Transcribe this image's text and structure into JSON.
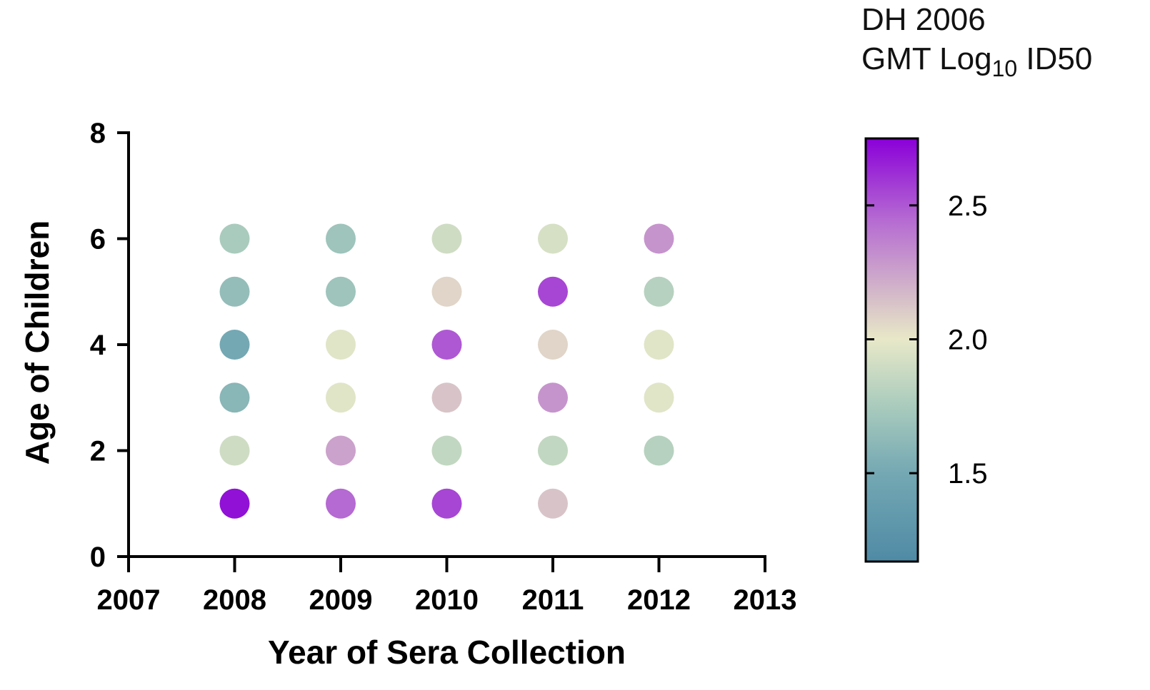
{
  "chart_data": {
    "type": "scatter",
    "title": "",
    "xlabel": "Year of Sera Collection",
    "ylabel": "Age of Children",
    "xlim": [
      2007,
      2013
    ],
    "ylim": [
      0,
      8
    ],
    "x_ticks": [
      "2007",
      "2008",
      "2009",
      "2010",
      "2011",
      "2012",
      "2013"
    ],
    "y_ticks": [
      "0",
      "2",
      "4",
      "6",
      "8"
    ],
    "grid": false,
    "points": [
      {
        "x": 2008,
        "y": 1,
        "value": 2.7
      },
      {
        "x": 2008,
        "y": 2,
        "value": 1.9
      },
      {
        "x": 2008,
        "y": 3,
        "value": 1.6
      },
      {
        "x": 2008,
        "y": 4,
        "value": 1.5
      },
      {
        "x": 2008,
        "y": 5,
        "value": 1.65
      },
      {
        "x": 2008,
        "y": 6,
        "value": 1.75
      },
      {
        "x": 2009,
        "y": 1,
        "value": 2.45
      },
      {
        "x": 2009,
        "y": 2,
        "value": 2.25
      },
      {
        "x": 2009,
        "y": 3,
        "value": 1.97
      },
      {
        "x": 2009,
        "y": 4,
        "value": 1.97
      },
      {
        "x": 2009,
        "y": 5,
        "value": 1.7
      },
      {
        "x": 2009,
        "y": 6,
        "value": 1.7
      },
      {
        "x": 2010,
        "y": 1,
        "value": 2.55
      },
      {
        "x": 2010,
        "y": 2,
        "value": 1.85
      },
      {
        "x": 2010,
        "y": 3,
        "value": 2.13
      },
      {
        "x": 2010,
        "y": 4,
        "value": 2.5
      },
      {
        "x": 2010,
        "y": 5,
        "value": 2.07
      },
      {
        "x": 2010,
        "y": 6,
        "value": 1.9
      },
      {
        "x": 2011,
        "y": 1,
        "value": 2.13
      },
      {
        "x": 2011,
        "y": 2,
        "value": 1.85
      },
      {
        "x": 2011,
        "y": 3,
        "value": 2.3
      },
      {
        "x": 2011,
        "y": 4,
        "value": 2.07
      },
      {
        "x": 2011,
        "y": 5,
        "value": 2.55
      },
      {
        "x": 2011,
        "y": 6,
        "value": 1.93
      },
      {
        "x": 2012,
        "y": 2,
        "value": 1.8
      },
      {
        "x": 2012,
        "y": 3,
        "value": 1.97
      },
      {
        "x": 2012,
        "y": 4,
        "value": 1.97
      },
      {
        "x": 2012,
        "y": 5,
        "value": 1.8
      },
      {
        "x": 2012,
        "y": 6,
        "value": 2.3
      }
    ],
    "colorbar": {
      "title_line1": "DH 2006",
      "title_line2_prefix": "GMT Log",
      "title_line2_subscript": "10",
      "title_line2_suffix": " ID50",
      "min": 1.17,
      "max": 2.75,
      "ticks": [
        {
          "value": 1.5,
          "label": "1.5"
        },
        {
          "value": 2.0,
          "label": "2.0"
        },
        {
          "value": 2.5,
          "label": "2.5"
        }
      ],
      "stops": [
        {
          "value": 1.17,
          "color": "#4f8aa5"
        },
        {
          "value": 1.5,
          "color": "#74a8b3"
        },
        {
          "value": 1.75,
          "color": "#a9cbbd"
        },
        {
          "value": 2.0,
          "color": "#e8e8c8"
        },
        {
          "value": 2.15,
          "color": "#d6bfc8"
        },
        {
          "value": 2.45,
          "color": "#b569d2"
        },
        {
          "value": 2.75,
          "color": "#8a00d8"
        }
      ]
    }
  }
}
